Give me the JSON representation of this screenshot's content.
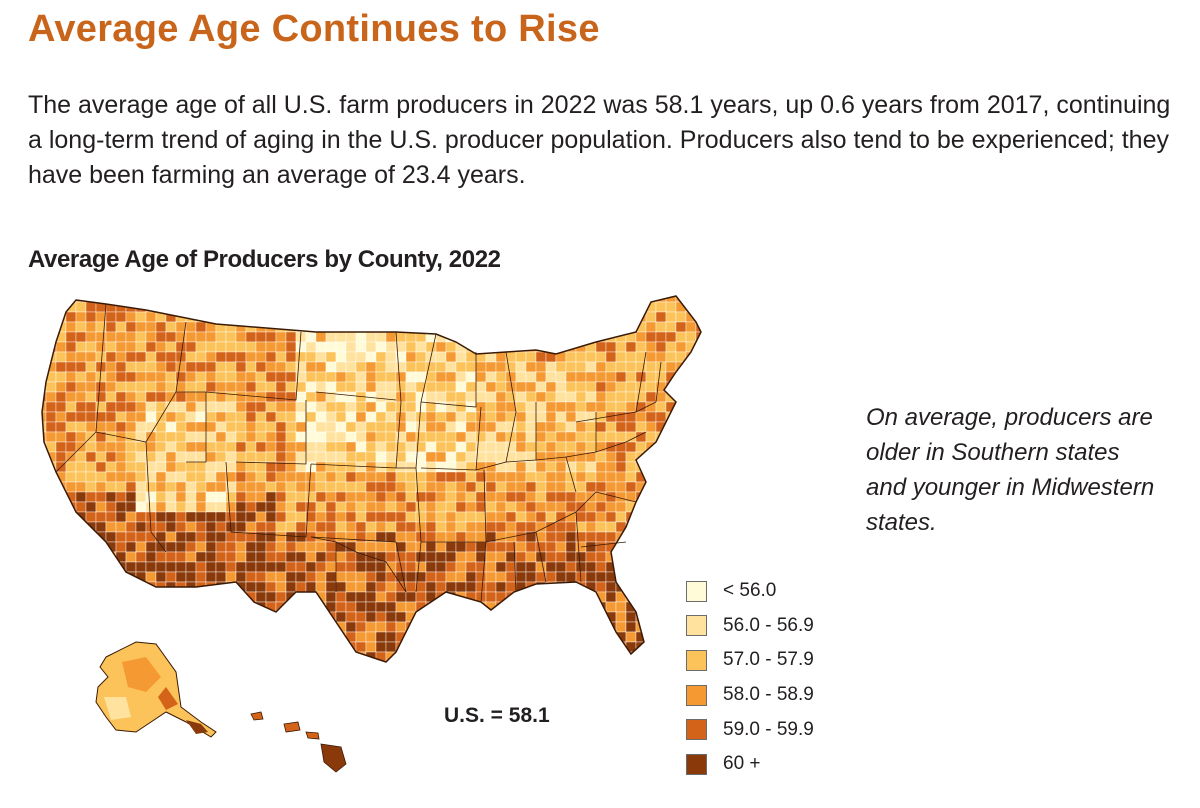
{
  "headline": "Average Age Continues to Rise",
  "intro": "The average age of all U.S. farm producers in 2022 was 58.1 years, up 0.6 years from 2017, continuing a long-term trend of aging in the U.S. producer population. Producers also tend to be experienced; they have been farming an average of 23.4 years.",
  "map": {
    "title": "Average Age of Producers by County, 2022",
    "us_average_label": "U.S. = 58.1",
    "legend": [
      {
        "label": "< 56.0",
        "color": "#fffbd9"
      },
      {
        "label": "56.0 - 56.9",
        "color": "#ffe29e"
      },
      {
        "label": "57.0 - 57.9",
        "color": "#fcc35a"
      },
      {
        "label": "58.0 - 58.9",
        "color": "#f59a33"
      },
      {
        "label": "59.0 - 59.9",
        "color": "#d4631a"
      },
      {
        "label": "60 +",
        "color": "#8a3a0a"
      }
    ]
  },
  "note": "On average, producers are older in Southern states and younger in Midwestern states."
}
